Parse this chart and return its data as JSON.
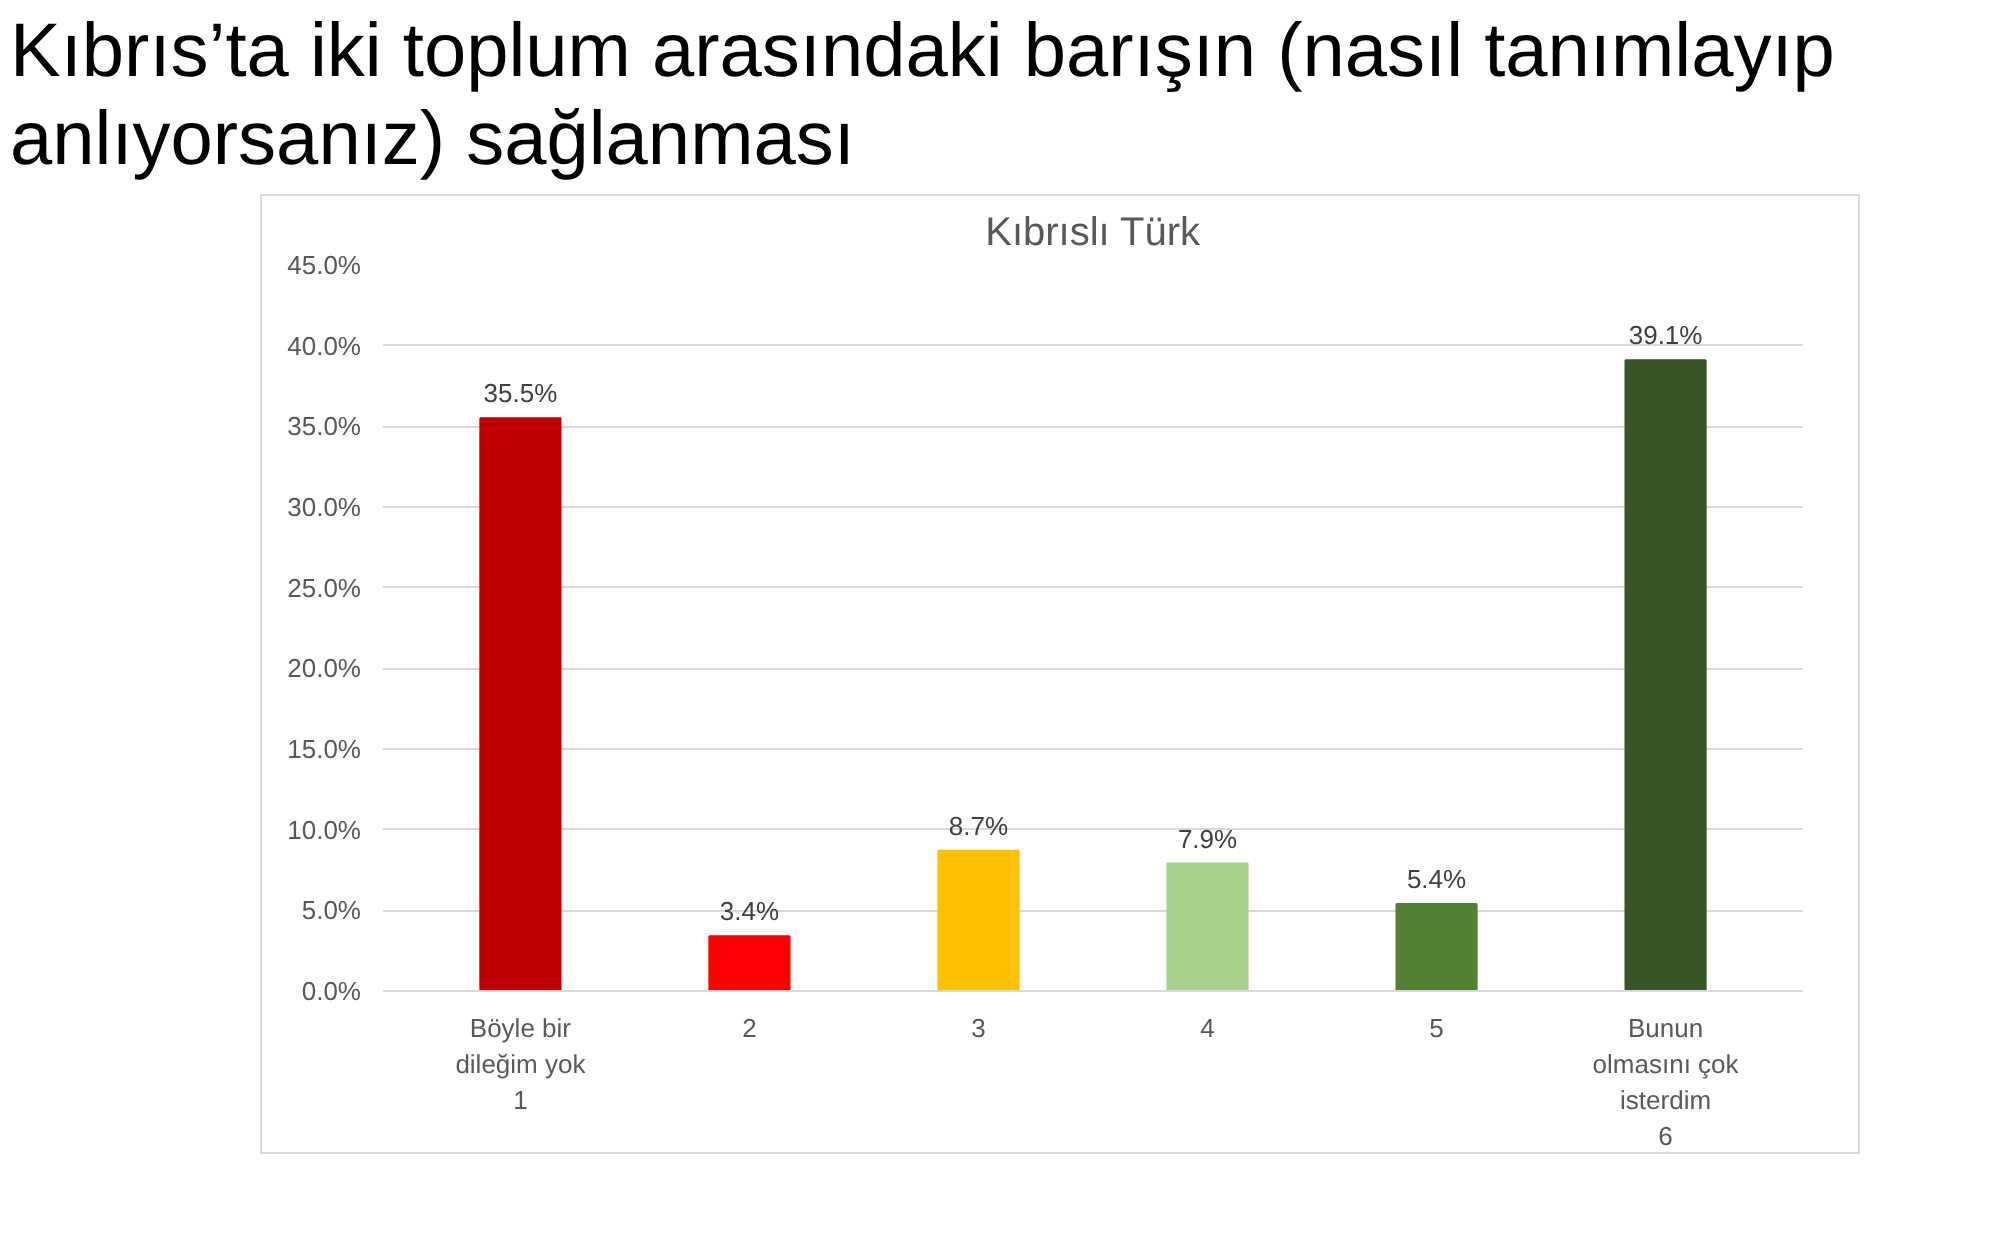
{
  "chart_data": {
    "type": "bar",
    "title": "Kıbrıs’ta iki toplum arasındaki barışın (nasıl tanımlayıp anlıyorsanız) sağlanması",
    "subtitle": "Kıbrıslı Türk",
    "categories": [
      "Böyle bir\ndileğim yok\n1",
      "2",
      "3",
      "4",
      "5",
      "Bunun\nolmasını çok\nisterdim\n6"
    ],
    "values": [
      35.5,
      3.4,
      8.7,
      7.9,
      5.4,
      39.1
    ],
    "value_labels": [
      "35.5%",
      "3.4%",
      "8.7%",
      "7.9%",
      "5.4%",
      "39.1%"
    ],
    "colors": [
      "#c00000",
      "#ff0000",
      "#ffc000",
      "#a9d18e",
      "#548235",
      "#375623"
    ],
    "ylim": [
      0,
      45
    ],
    "yticks": [
      {
        "value": 0,
        "label": "0.0%"
      },
      {
        "value": 5,
        "label": "5.0%"
      },
      {
        "value": 10,
        "label": "10.0%"
      },
      {
        "value": 15,
        "label": "15.0%"
      },
      {
        "value": 20,
        "label": "20.0%"
      },
      {
        "value": 25,
        "label": "25.0%"
      },
      {
        "value": 30,
        "label": "30.0%"
      },
      {
        "value": 35,
        "label": "35.0%"
      },
      {
        "value": 40,
        "label": "40.0%"
      },
      {
        "value": 45,
        "label": "45.0%"
      }
    ],
    "grid": "y"
  }
}
